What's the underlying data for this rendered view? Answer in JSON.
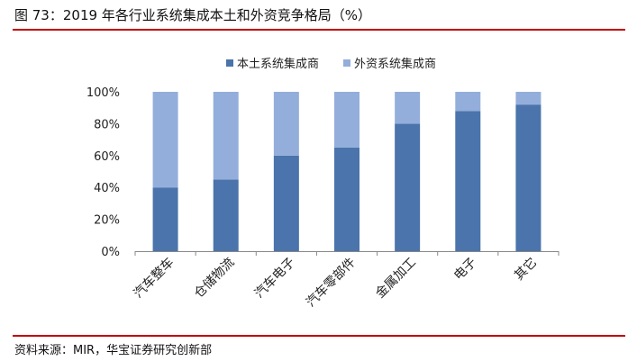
{
  "figure": {
    "title": "图 73：2019 年各行业系统集成本土和外资竞争格局（%）",
    "source": "资料来源：MIR，华宝证券研究创新部"
  },
  "colors": {
    "domestic": "#4a74ab",
    "foreign": "#94aedb",
    "rule": "#c00000",
    "axis": "#888888"
  },
  "chart_data": {
    "type": "bar",
    "stacked": true,
    "categories": [
      "汽车整车",
      "仓储物流",
      "汽车电子",
      "汽车零部件",
      "金属加工",
      "电子",
      "其它"
    ],
    "series": [
      {
        "name": "本土系统集成商",
        "values": [
          40,
          45,
          60,
          65,
          80,
          88,
          92
        ]
      },
      {
        "name": "外资系统集成商",
        "values": [
          60,
          55,
          40,
          35,
          20,
          12,
          8
        ]
      }
    ],
    "yticks": [
      "0%",
      "20%",
      "40%",
      "60%",
      "80%",
      "100%"
    ],
    "ylim": [
      0,
      100
    ],
    "legend_position": "top-center",
    "grid": false
  }
}
